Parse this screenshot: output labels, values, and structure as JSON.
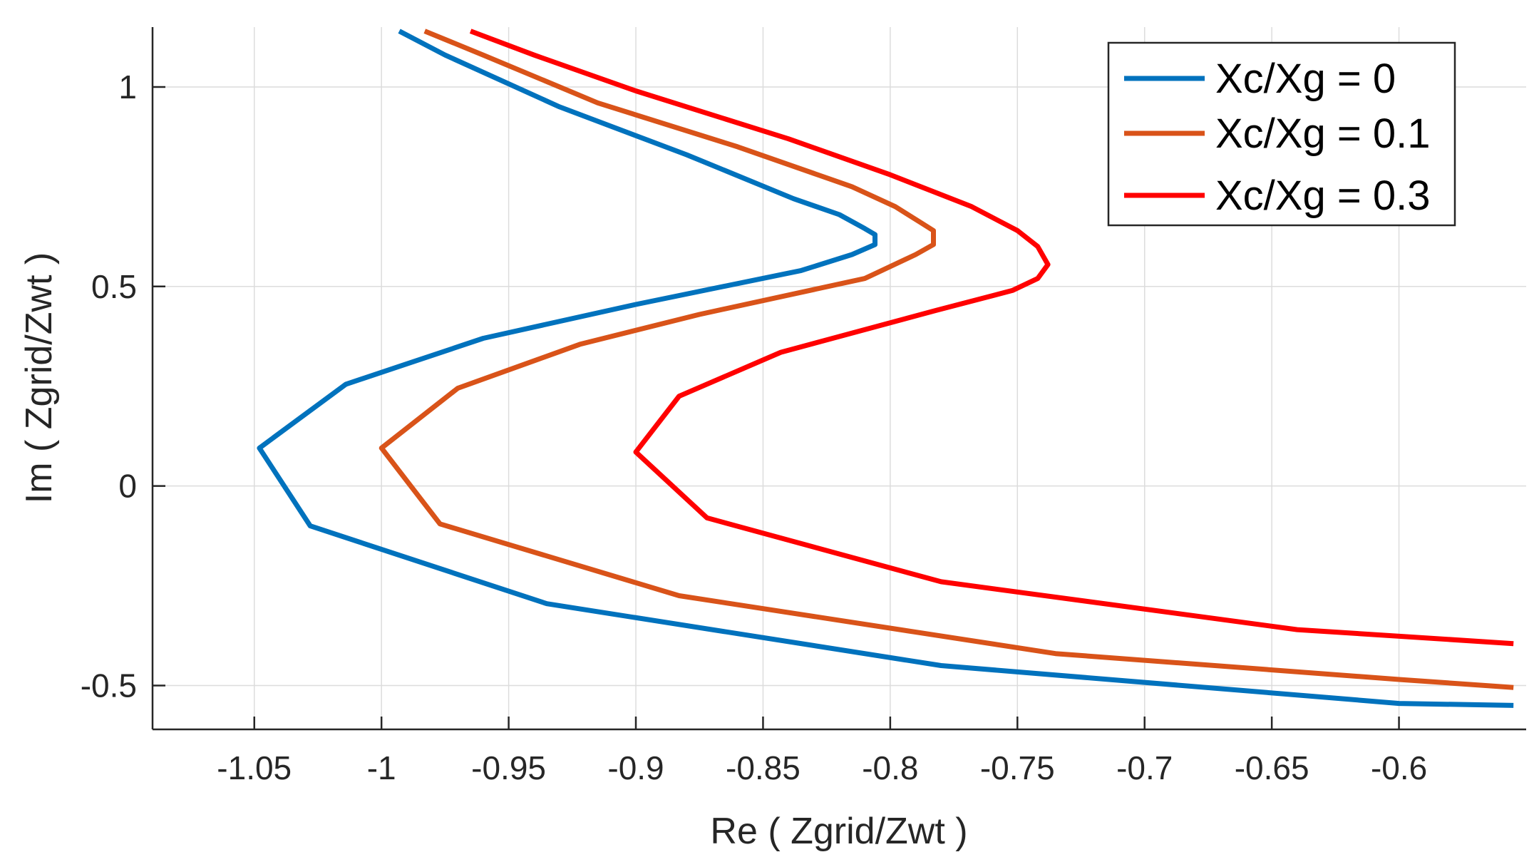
{
  "chart_data": {
    "type": "line",
    "title": "",
    "xlabel": "Re ( Zgrid/Zwt )",
    "ylabel": "Im ( Zgrid/Zwt )",
    "xlim": [
      -1.09,
      -0.55
    ],
    "ylim": [
      -0.61,
      1.15
    ],
    "grid": true,
    "legend_position": "top-right",
    "xticks": [
      -1.05,
      -1,
      -0.95,
      -0.9,
      -0.85,
      -0.8,
      -0.75,
      -0.7,
      -0.65,
      -0.6
    ],
    "xtick_labels": [
      "-1.05",
      "-1",
      "-0.95",
      "-0.9",
      "-0.85",
      "-0.8",
      "-0.75",
      "-0.7",
      "-0.65",
      "-0.6"
    ],
    "yticks": [
      -0.5,
      0,
      0.5,
      1
    ],
    "ytick_labels": [
      "-0.5",
      "0",
      "0.5",
      "1"
    ],
    "series": [
      {
        "name": "Xc/Xg = 0",
        "color": "#0072BD",
        "points": [
          [
            -0.993,
            1.14
          ],
          [
            -0.975,
            1.08
          ],
          [
            -0.93,
            0.95
          ],
          [
            -0.88,
            0.83
          ],
          [
            -0.838,
            0.72
          ],
          [
            -0.82,
            0.68
          ],
          [
            -0.81,
            0.645
          ],
          [
            -0.806,
            0.63
          ],
          [
            -0.806,
            0.605
          ],
          [
            -0.815,
            0.58
          ],
          [
            -0.835,
            0.54
          ],
          [
            -0.9,
            0.455
          ],
          [
            -0.96,
            0.37
          ],
          [
            -1.014,
            0.255
          ],
          [
            -1.048,
            0.095
          ],
          [
            -1.028,
            -0.1
          ],
          [
            -0.935,
            -0.295
          ],
          [
            -0.78,
            -0.45
          ],
          [
            -0.6,
            -0.545
          ],
          [
            -0.555,
            -0.55
          ]
        ]
      },
      {
        "name": "Xc/Xg = 0.1",
        "color": "#D95319",
        "points": [
          [
            -0.983,
            1.14
          ],
          [
            -0.96,
            1.08
          ],
          [
            -0.915,
            0.96
          ],
          [
            -0.86,
            0.85
          ],
          [
            -0.815,
            0.75
          ],
          [
            -0.798,
            0.7
          ],
          [
            -0.788,
            0.66
          ],
          [
            -0.783,
            0.64
          ],
          [
            -0.783,
            0.605
          ],
          [
            -0.79,
            0.58
          ],
          [
            -0.81,
            0.52
          ],
          [
            -0.875,
            0.43
          ],
          [
            -0.922,
            0.355
          ],
          [
            -0.97,
            0.245
          ],
          [
            -1.0,
            0.095
          ],
          [
            -0.977,
            -0.095
          ],
          [
            -0.883,
            -0.275
          ],
          [
            -0.735,
            -0.42
          ],
          [
            -0.6,
            -0.485
          ],
          [
            -0.555,
            -0.505
          ]
        ]
      },
      {
        "name": "Xc/Xg = 0.3",
        "color": "#FF0000",
        "points": [
          [
            -0.965,
            1.14
          ],
          [
            -0.94,
            1.08
          ],
          [
            -0.9,
            0.99
          ],
          [
            -0.84,
            0.87
          ],
          [
            -0.8,
            0.78
          ],
          [
            -0.768,
            0.7
          ],
          [
            -0.75,
            0.64
          ],
          [
            -0.742,
            0.6
          ],
          [
            -0.738,
            0.555
          ],
          [
            -0.742,
            0.52
          ],
          [
            -0.752,
            0.49
          ],
          [
            -0.782,
            0.44
          ],
          [
            -0.843,
            0.335
          ],
          [
            -0.883,
            0.225
          ],
          [
            -0.9,
            0.085
          ],
          [
            -0.872,
            -0.08
          ],
          [
            -0.78,
            -0.24
          ],
          [
            -0.64,
            -0.36
          ],
          [
            -0.555,
            -0.395
          ]
        ]
      }
    ]
  }
}
